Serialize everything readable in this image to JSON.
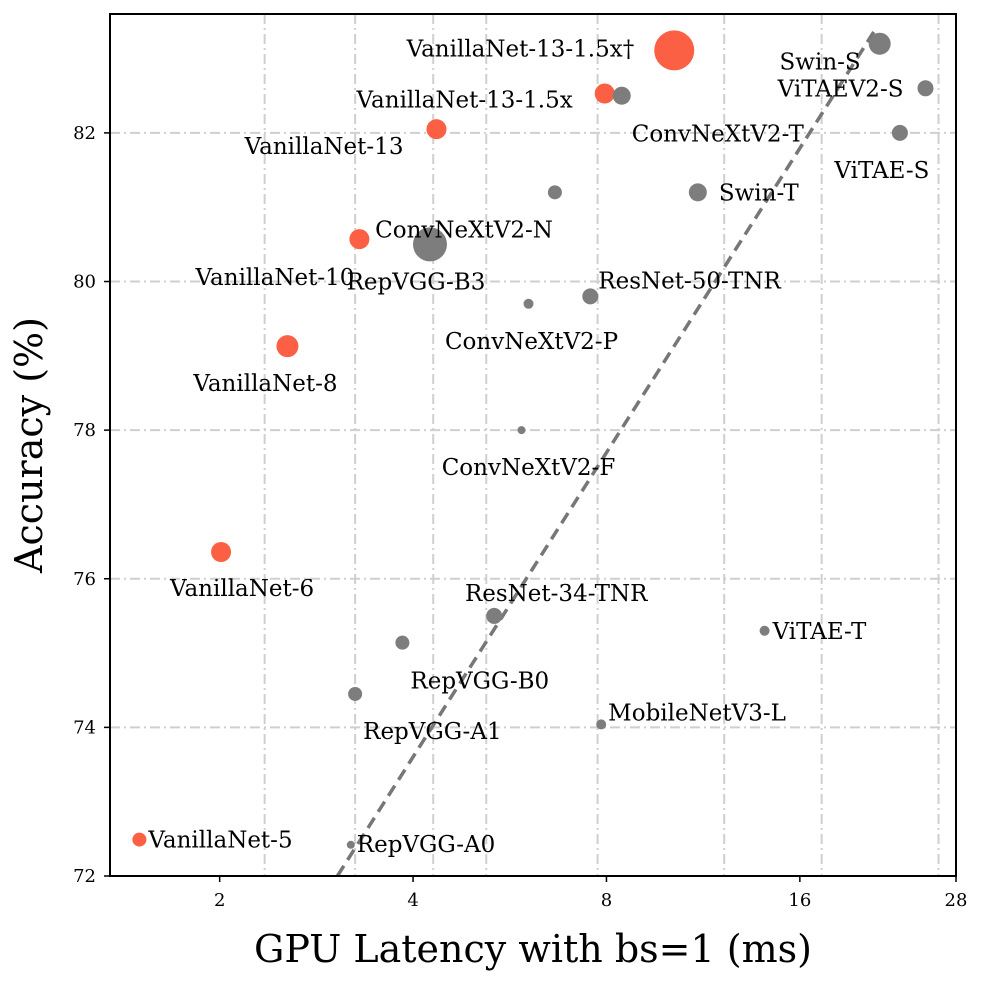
{
  "chart_data": {
    "type": "scatter",
    "xlabel": "GPU Latency with bs=1 (ms)",
    "ylabel": "Accuracy (%)",
    "x_scale": "log",
    "xlim": [
      1.35,
      28
    ],
    "ylim": [
      72,
      83.6
    ],
    "x_ticks": [
      {
        "value": 2,
        "label": "2"
      },
      {
        "value": 4,
        "label": "4"
      },
      {
        "value": 8,
        "label": "8"
      },
      {
        "value": 16,
        "label": "16"
      },
      {
        "value": 28,
        "label": "28"
      }
    ],
    "y_ticks": [
      {
        "value": 72,
        "label": "72"
      },
      {
        "value": 74,
        "label": "74"
      },
      {
        "value": 76,
        "label": "76"
      },
      {
        "value": 78,
        "label": "78"
      },
      {
        "value": 80,
        "label": "80"
      },
      {
        "value": 82,
        "label": "82"
      }
    ],
    "v_gridlines": [
      2.35,
      3.25,
      4.3,
      5.2,
      7.75,
      12.2,
      17.3,
      26.3
    ],
    "h_gridlines": [
      74,
      76,
      78,
      80,
      82
    ],
    "trend_line": {
      "from": [
        3.05,
        72
      ],
      "to": [
        21,
        83.4
      ],
      "color": "#777777"
    },
    "series": [
      {
        "name": "VanillaNet",
        "color": "#fb5f44",
        "points": [
          {
            "label": "VanillaNet-13-1.5x†",
            "x": 10.2,
            "y": 83.11,
            "size": 20,
            "anchor": "end",
            "dx": -20,
            "dy": -2
          },
          {
            "label": "VanillaNet-13-1.5x",
            "x": 7.95,
            "y": 82.53,
            "size": 10,
            "anchor": "end",
            "dx": -22,
            "dy": 6
          },
          {
            "label": "VanillaNet-13",
            "x": 4.35,
            "y": 82.05,
            "size": 10,
            "anchor": "end",
            "dx": -23,
            "dy": 17
          },
          {
            "label": "VanillaNet-10",
            "x": 3.3,
            "y": 80.57,
            "size": 10,
            "anchor": "end",
            "dx": 5,
            "dy": 38
          },
          {
            "label": "VanillaNet-8",
            "x": 2.55,
            "y": 79.13,
            "size": 11,
            "anchor": "middle",
            "dx": -22,
            "dy": 37
          },
          {
            "label": "VanillaNet-6",
            "x": 2.01,
            "y": 76.36,
            "size": 10,
            "anchor": "middle",
            "dx": 21,
            "dy": 36
          },
          {
            "label": "VanillaNet-5",
            "x": 1.5,
            "y": 72.49,
            "size": 7,
            "anchor": "start",
            "dx": 2,
            "dy": 0
          }
        ]
      },
      {
        "name": "Baselines",
        "color": "#7d7d7d",
        "points": [
          {
            "label": "Swin-S",
            "x": 21.3,
            "y": 83.2,
            "size": 11,
            "anchor": "end",
            "dx": -8,
            "dy": 18
          },
          {
            "label": "ViTAEV2-S",
            "x": 25.1,
            "y": 82.6,
            "size": 8,
            "anchor": "end",
            "dx": -14,
            "dy": 0
          },
          {
            "label": "ViTAE-S",
            "x": 22.9,
            "y": 82.0,
            "size": 8,
            "anchor": "middle",
            "dx": -18,
            "dy": 37
          },
          {
            "label": "ConvNeXtV2-T",
            "x": 8.45,
            "y": 82.5,
            "size": 9,
            "anchor": "start",
            "dx": 1,
            "dy": 38
          },
          {
            "label": "ConvNeXtV2-N",
            "x": 6.65,
            "y": 81.2,
            "size": 7,
            "anchor": "end",
            "dx": 5,
            "dy": 37
          },
          {
            "label": "Swin-T",
            "x": 11.1,
            "y": 81.2,
            "size": 9,
            "anchor": "start",
            "dx": 12,
            "dy": 0
          },
          {
            "label": "RepVGG-B3",
            "x": 4.25,
            "y": 80.5,
            "size": 17,
            "anchor": "middle",
            "dx": -14,
            "dy": 37
          },
          {
            "label": "ResNet-50-TNR",
            "x": 7.55,
            "y": 79.8,
            "size": 8,
            "anchor": "start",
            "dx": 0,
            "dy": -16
          },
          {
            "label": "ConvNeXtV2-P",
            "x": 6.05,
            "y": 79.7,
            "size": 5,
            "anchor": "middle",
            "dx": 3,
            "dy": 37
          },
          {
            "label": "ConvNeXtV2-F",
            "x": 5.9,
            "y": 78.0,
            "size": 4,
            "anchor": "middle",
            "dx": 7,
            "dy": 37
          },
          {
            "label": "ResNet-34-TNR",
            "x": 5.35,
            "y": 75.5,
            "size": 8,
            "anchor": "middle",
            "dx": 62,
            "dy": -23
          },
          {
            "label": "ViTAE-T",
            "x": 14.1,
            "y": 75.3,
            "size": 5,
            "anchor": "start",
            "dx": 3,
            "dy": 0
          },
          {
            "label": "RepVGG-B0",
            "x": 3.85,
            "y": 75.14,
            "size": 7,
            "anchor": "start",
            "dx": 1,
            "dy": 38
          },
          {
            "label": "RepVGG-A1",
            "x": 3.25,
            "y": 74.45,
            "size": 7,
            "anchor": "start",
            "dx": 1,
            "dy": 37
          },
          {
            "label": "MobileNetV3-L",
            "x": 7.85,
            "y": 74.04,
            "size": 5,
            "anchor": "start",
            "dx": 2,
            "dy": -12
          },
          {
            "label": "RepVGG-A0",
            "x": 3.2,
            "y": 72.42,
            "size": 4,
            "anchor": "start",
            "dx": 2,
            "dy": -1
          }
        ]
      }
    ]
  }
}
